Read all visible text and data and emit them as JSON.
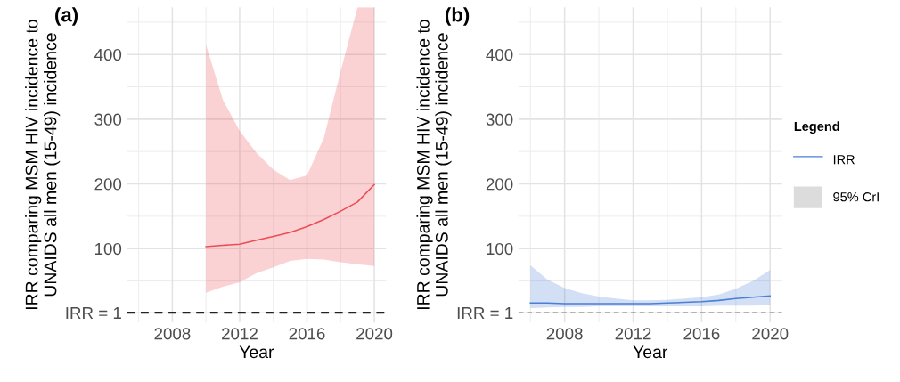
{
  "chart_data": [
    {
      "type": "line",
      "title": "(a)",
      "xlabel": "Year",
      "ylabel": "IRR comparing MSM HIV incidence to\nUNAIDS all men (15-49) incidence",
      "x": [
        2010,
        2011,
        2012,
        2013,
        2014,
        2015,
        2016,
        2017,
        2018,
        2019,
        2020
      ],
      "series": [
        {
          "color": "#ee4b52",
          "values": [
            103,
            105,
            107,
            113,
            119,
            125,
            134,
            145,
            158,
            172,
            199
          ],
          "lower": [
            32,
            41,
            48,
            62,
            71,
            81,
            84,
            83,
            79,
            76,
            73
          ],
          "upper": [
            415,
            330,
            282,
            248,
            222,
            206,
            213,
            271,
            374,
            473,
            473
          ]
        }
      ],
      "xlim": [
        2005.3,
        2020.7
      ],
      "ylim": [
        -14,
        473
      ],
      "xticks": [
        2008,
        2012,
        2016,
        2020
      ],
      "yticks": [
        {
          "value": 1,
          "label": "IRR = 1"
        },
        100,
        200,
        300,
        400
      ],
      "ref_lines": [
        {
          "axis": "y",
          "value": 1,
          "color": "#222222",
          "line_style": "dashed"
        }
      ],
      "grid": true
    },
    {
      "type": "line",
      "title": "(b)",
      "xlabel": "Year",
      "ylabel": "IRR comparing MSM HIV incidence to\nUNAIDS all men (15-49) incidence",
      "legend_title": "Legend",
      "legend": "right",
      "annotations": [
        "95% CrI"
      ],
      "x": [
        2006,
        2007,
        2008,
        2009,
        2010,
        2011,
        2012,
        2013,
        2014,
        2015,
        2016,
        2017,
        2018,
        2019,
        2020
      ],
      "series": [
        {
          "name": "IRR",
          "color": "#4a7fd6",
          "values": [
            16,
            16,
            15,
            15,
            15,
            15,
            15,
            15,
            16,
            17,
            18,
            20,
            23,
            25,
            27
          ],
          "lower": [
            8,
            9,
            10,
            10,
            11,
            11,
            11,
            11,
            11,
            11,
            11,
            12,
            12,
            12,
            13
          ],
          "upper": [
            74,
            52,
            39,
            31,
            26,
            23,
            20,
            20,
            21,
            23,
            25,
            29,
            38,
            50,
            67
          ]
        }
      ],
      "xlim": [
        2005.3,
        2020.7
      ],
      "ylim": [
        -14,
        473
      ],
      "xticks": [
        2008,
        2012,
        2016,
        2020
      ],
      "yticks": [
        {
          "value": 1,
          "label": "IRR = 1"
        },
        100,
        200,
        300,
        400
      ],
      "ref_lines": [
        {
          "axis": "y",
          "value": 1,
          "color": "#777777",
          "line_style": "dashed"
        }
      ],
      "grid": true
    }
  ]
}
